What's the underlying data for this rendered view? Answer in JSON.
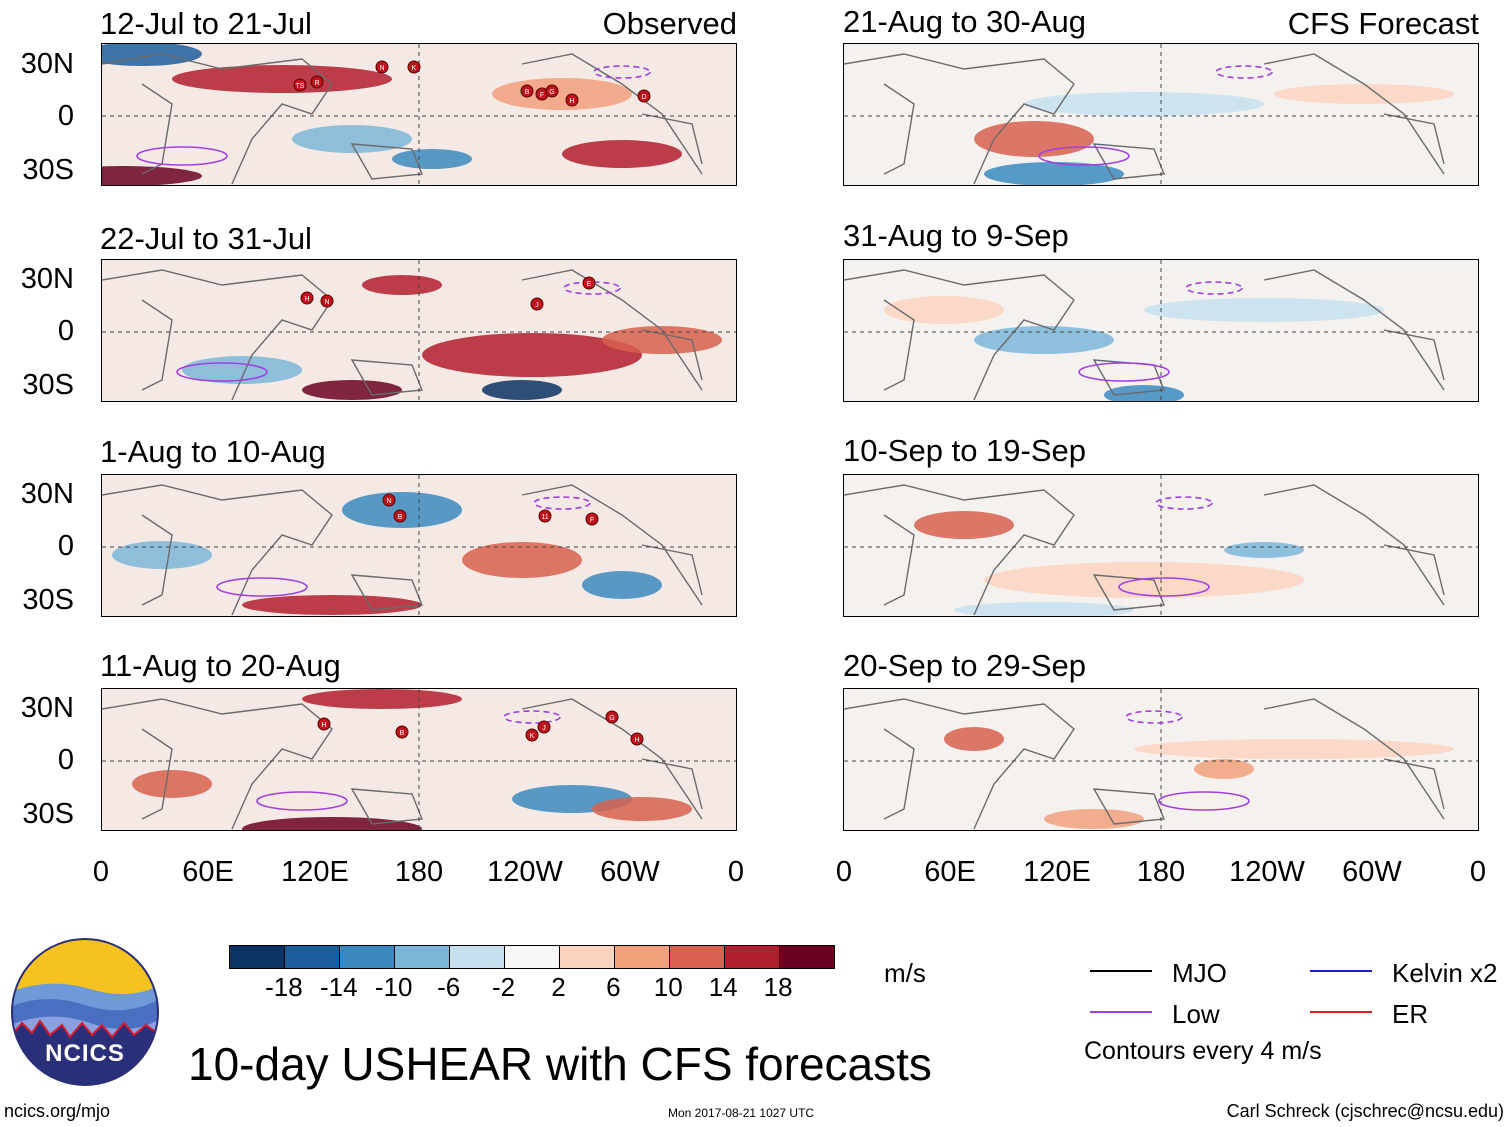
{
  "observed_label": "Observed",
  "forecast_label": "CFS Forecast",
  "observed_panels": [
    {
      "title": "12-Jul to 21-Jul",
      "storms": [
        "TS",
        "R",
        "N",
        "K",
        "B",
        "F",
        "G",
        "H",
        "D"
      ]
    },
    {
      "title": "22-Jul to 31-Jul",
      "storms": [
        "H",
        "N",
        "J",
        "E"
      ]
    },
    {
      "title": "1-Aug to 10-Aug",
      "storms": [
        "N",
        "B",
        "11",
        "F"
      ]
    },
    {
      "title": "11-Aug to 20-Aug",
      "storms": [
        "H",
        "B",
        "K",
        "J",
        "G",
        "H"
      ]
    }
  ],
  "forecast_panels": [
    {
      "title": "21-Aug to 30-Aug"
    },
    {
      "title": "31-Aug to 9-Sep"
    },
    {
      "title": "10-Sep to 19-Sep"
    },
    {
      "title": "20-Sep to 29-Sep"
    }
  ],
  "lat_labels": [
    "30N",
    "0",
    "30S"
  ],
  "lon_labels": [
    "0",
    "60E",
    "120E",
    "180",
    "120W",
    "60W",
    "0"
  ],
  "colorbar": {
    "colors": [
      "#0c3364",
      "#1c5e9c",
      "#3b89c0",
      "#7bb6d8",
      "#c6e0ee",
      "#f7f7f7",
      "#fbd4bf",
      "#f1a07c",
      "#d7604e",
      "#b21f2e",
      "#6a0220"
    ],
    "labels": [
      "-18",
      "-14",
      "-10",
      "-6",
      "-2",
      "2",
      "6",
      "10",
      "14",
      "18"
    ],
    "units": "m/s"
  },
  "legend": {
    "items": [
      {
        "label": "MJO",
        "color": "#000000"
      },
      {
        "label": "Kelvin x2",
        "color": "#2020c0"
      },
      {
        "label": "Low",
        "color": "#a040e0"
      },
      {
        "label": "ER",
        "color": "#e02020"
      }
    ],
    "contour_note": "Contours every 4 m/s"
  },
  "logo_text": "NCICS",
  "main_title": "10-day USHEAR with CFS forecasts",
  "footer_left": "ncics.org/mjo",
  "footer_center": "Mon 2017-08-21 1027 UTC",
  "footer_right": "Carl Schreck (cjschrec@ncsu.edu)"
}
